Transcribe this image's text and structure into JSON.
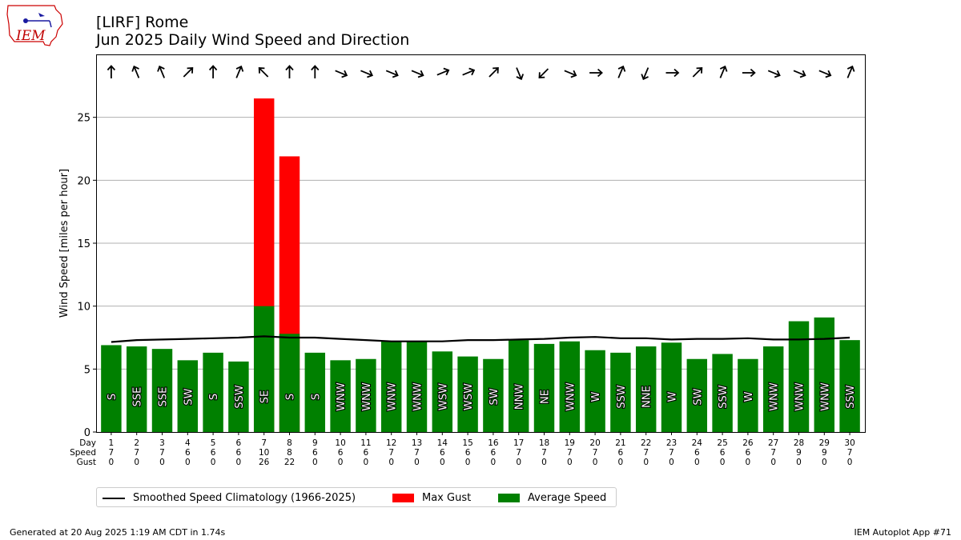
{
  "header": {
    "title_line1": "[LIRF] Rome",
    "title_line2": "Jun 2025 Daily Wind Speed and Direction",
    "logo_text": "IEM"
  },
  "footer": {
    "generated": "Generated at 20 Aug 2025 1:19 AM CDT in 1.74s",
    "app": "IEM Autoplot App #71"
  },
  "legend": {
    "climatology": "Smoothed Speed Climatology (1966-2025)",
    "gust": "Max Gust",
    "average": "Average Speed"
  },
  "colors": {
    "average": "#008000",
    "gust": "#ff0000",
    "climatology": "#000000",
    "grid": "#b0b0b0"
  },
  "chart_data": {
    "type": "bar",
    "ylabel": "Wind Speed [miles per hour]",
    "ylim": [
      0,
      30
    ],
    "yticks": [
      0,
      5,
      10,
      15,
      20,
      25
    ],
    "grid": "horizontal",
    "legend_position": "below",
    "row_labels": [
      "Day",
      "Speed",
      "Gust"
    ],
    "days": [
      1,
      2,
      3,
      4,
      5,
      6,
      7,
      8,
      9,
      10,
      11,
      12,
      13,
      14,
      15,
      16,
      17,
      18,
      19,
      20,
      21,
      22,
      23,
      24,
      25,
      26,
      27,
      28,
      29,
      30
    ],
    "speed_labels": [
      7,
      7,
      7,
      6,
      6,
      6,
      10,
      8,
      6,
      6,
      6,
      7,
      7,
      6,
      6,
      6,
      7,
      7,
      7,
      7,
      6,
      7,
      7,
      6,
      6,
      6,
      7,
      9,
      9,
      7
    ],
    "gust_labels": [
      0,
      0,
      0,
      0,
      0,
      0,
      26,
      22,
      0,
      0,
      0,
      0,
      0,
      0,
      0,
      0,
      0,
      0,
      0,
      0,
      0,
      0,
      0,
      0,
      0,
      0,
      0,
      0,
      0,
      0
    ],
    "series": [
      {
        "name": "Average Speed",
        "values": [
          6.9,
          6.8,
          6.6,
          5.7,
          6.3,
          5.6,
          10.0,
          7.8,
          6.3,
          5.7,
          5.8,
          7.2,
          7.2,
          6.4,
          6.0,
          5.8,
          7.3,
          7.0,
          7.2,
          6.5,
          6.3,
          6.8,
          7.1,
          5.8,
          6.2,
          5.8,
          6.8,
          8.8,
          9.1,
          7.3
        ]
      },
      {
        "name": "Max Gust",
        "values": [
          0,
          0,
          0,
          0,
          0,
          0,
          26.5,
          21.9,
          0,
          0,
          0,
          0,
          0,
          0,
          0,
          0,
          0,
          0,
          0,
          0,
          0,
          0,
          0,
          0,
          0,
          0,
          0,
          0,
          0,
          0
        ]
      },
      {
        "name": "Smoothed Speed Climatology (1966-2025)",
        "values": [
          7.15,
          7.3,
          7.35,
          7.4,
          7.45,
          7.5,
          7.6,
          7.5,
          7.5,
          7.4,
          7.3,
          7.2,
          7.2,
          7.2,
          7.3,
          7.3,
          7.35,
          7.4,
          7.5,
          7.55,
          7.45,
          7.45,
          7.35,
          7.4,
          7.4,
          7.45,
          7.35,
          7.35,
          7.4,
          7.5
        ]
      }
    ],
    "direction_labels": [
      "S",
      "SSE",
      "SSE",
      "SW",
      "S",
      "SSW",
      "SE",
      "S",
      "S",
      "WNW",
      "WNW",
      "WNW",
      "WNW",
      "WSW",
      "WSW",
      "SW",
      "NNW",
      "NE",
      "WNW",
      "W",
      "SSW",
      "NNE",
      "W",
      "SW",
      "SSW",
      "W",
      "WNW",
      "WNW",
      "WNW",
      "SSW"
    ],
    "direction_degrees": [
      180,
      157.5,
      157.5,
      225,
      180,
      202.5,
      135,
      180,
      180,
      292.5,
      292.5,
      292.5,
      292.5,
      247.5,
      247.5,
      225,
      337.5,
      45,
      292.5,
      270,
      202.5,
      22.5,
      270,
      225,
      202.5,
      270,
      292.5,
      292.5,
      292.5,
      202.5
    ]
  }
}
